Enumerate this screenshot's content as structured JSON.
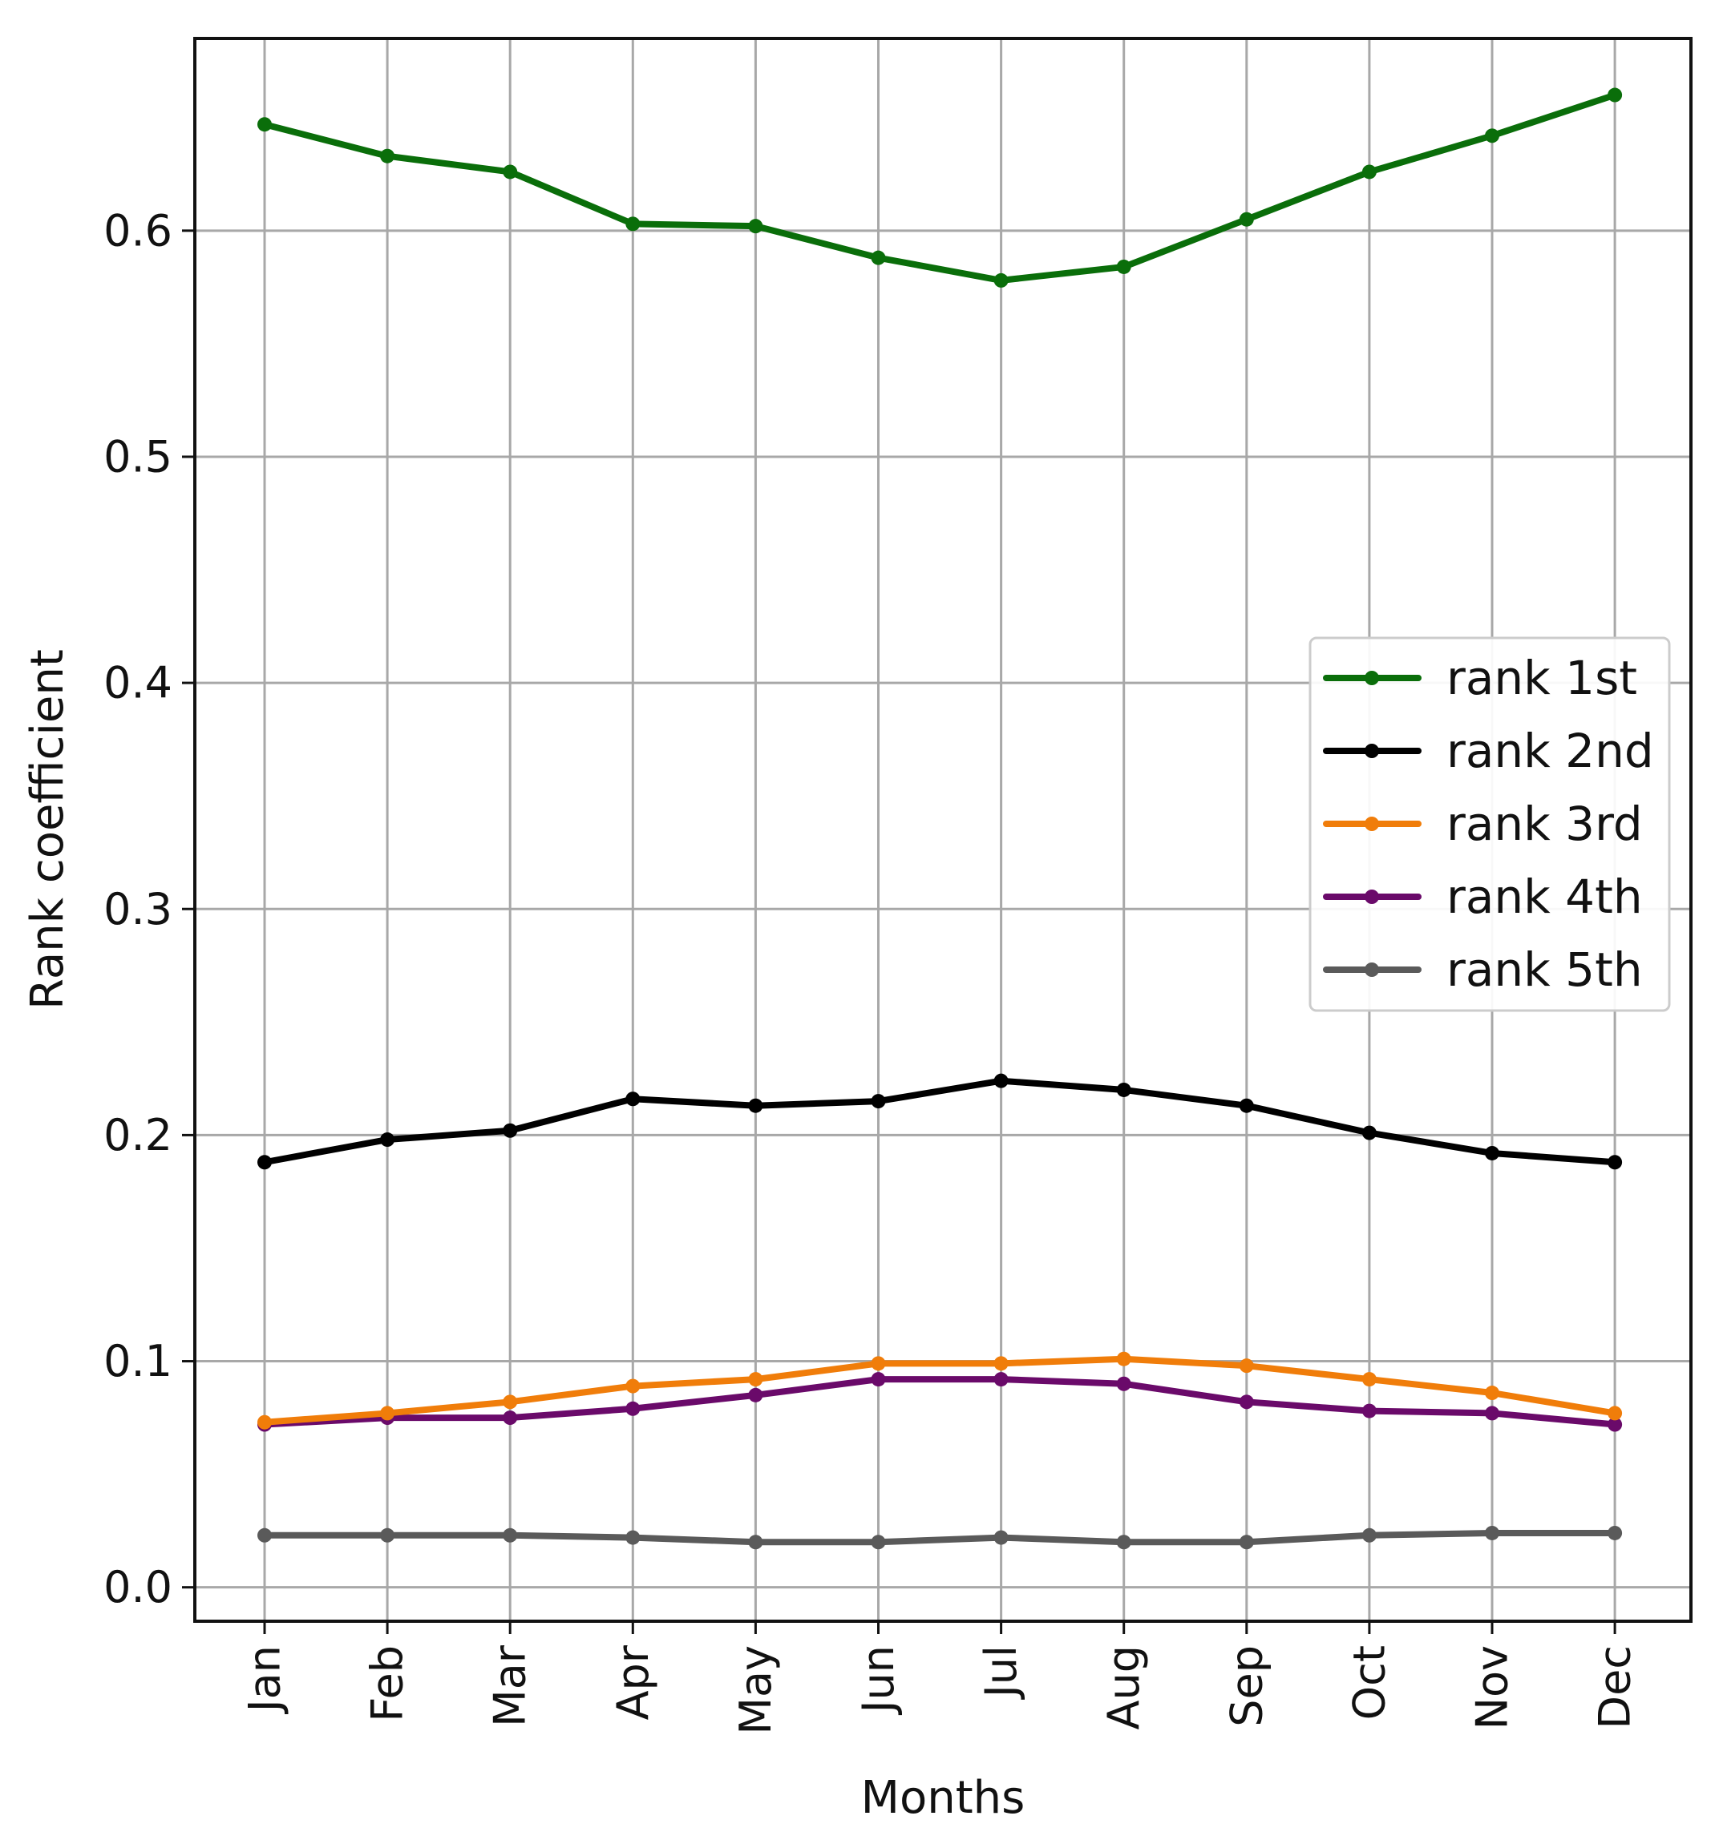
{
  "chart_data": {
    "type": "line",
    "title": "",
    "xlabel": "Months",
    "ylabel": "Rank coefficient",
    "categories": [
      "Jan",
      "Feb",
      "Mar",
      "Apr",
      "May",
      "Jun",
      "Jul",
      "Aug",
      "Sep",
      "Oct",
      "Nov",
      "Dec"
    ],
    "ylim": [
      -0.015,
      0.685
    ],
    "yticks": [
      0.0,
      0.1,
      0.2,
      0.3,
      0.4,
      0.5,
      0.6
    ],
    "ytick_labels": [
      "0.0",
      "0.1",
      "0.2",
      "0.3",
      "0.4",
      "0.5",
      "0.6"
    ],
    "grid": true,
    "legend_position": "center-right",
    "series": [
      {
        "name": "rank 1st",
        "color": "#0a6e0a",
        "values": [
          0.647,
          0.633,
          0.626,
          0.603,
          0.602,
          0.588,
          0.578,
          0.584,
          0.605,
          0.626,
          0.642,
          0.66
        ]
      },
      {
        "name": "rank 2nd",
        "color": "#000000",
        "values": [
          0.188,
          0.198,
          0.202,
          0.216,
          0.213,
          0.215,
          0.224,
          0.22,
          0.213,
          0.201,
          0.192,
          0.188
        ]
      },
      {
        "name": "rank 3rd",
        "color": "#f07d0a",
        "values": [
          0.073,
          0.077,
          0.082,
          0.089,
          0.092,
          0.099,
          0.099,
          0.101,
          0.098,
          0.092,
          0.086,
          0.077
        ]
      },
      {
        "name": "rank 4th",
        "color": "#6a0a6a",
        "values": [
          0.072,
          0.075,
          0.075,
          0.079,
          0.085,
          0.092,
          0.092,
          0.09,
          0.082,
          0.078,
          0.077,
          0.072
        ]
      },
      {
        "name": "rank 5th",
        "color": "#5a5a5a",
        "values": [
          0.023,
          0.023,
          0.023,
          0.022,
          0.02,
          0.02,
          0.022,
          0.02,
          0.02,
          0.023,
          0.024,
          0.024
        ]
      }
    ]
  }
}
